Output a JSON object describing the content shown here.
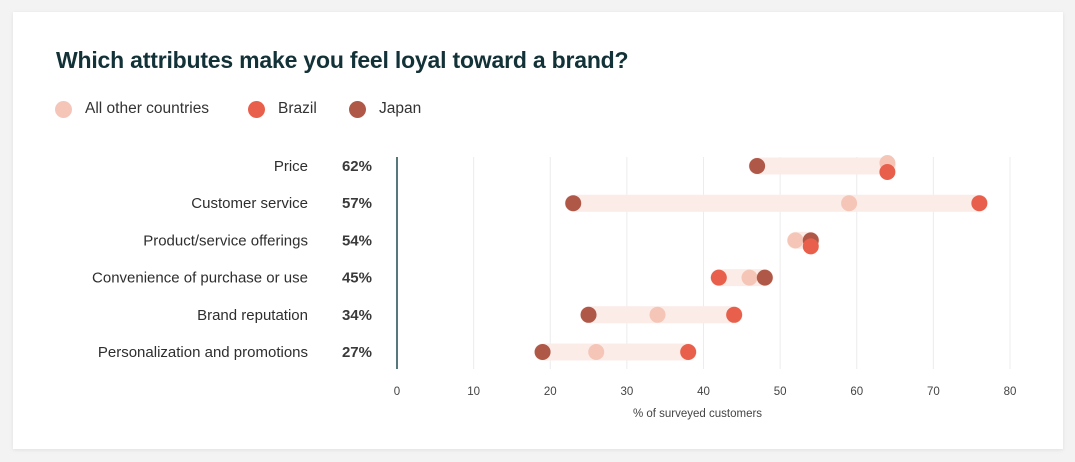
{
  "chart_data": {
    "type": "dot-range",
    "title": "Which attributes make you feel loyal toward a brand?",
    "xlabel": "% of surveyed customers",
    "xlim": [
      0,
      80
    ],
    "xticks": [
      "0",
      "10",
      "20",
      "30",
      "40",
      "50",
      "60",
      "70",
      "80"
    ],
    "grid": true,
    "legend_position": "top-left",
    "categories": [
      "Price",
      "Customer service",
      "Product/service offerings",
      "Convenience of purchase or use",
      "Brand reputation",
      "Personalization and promotions"
    ],
    "overall_labels": [
      "62%",
      "57%",
      "54%",
      "45%",
      "34%",
      "27%"
    ],
    "series": [
      {
        "name": "All other countries",
        "color": "#f5c6b7",
        "values": [
          64,
          59,
          52,
          46,
          34,
          26
        ]
      },
      {
        "name": "Brazil",
        "color": "#e8604c",
        "values": [
          64,
          76,
          54,
          42,
          44,
          38
        ]
      },
      {
        "name": "Japan",
        "color": "#b05848",
        "values": [
          47,
          23,
          54,
          48,
          25,
          19
        ]
      }
    ],
    "range_bar_color": "#fbece8"
  }
}
